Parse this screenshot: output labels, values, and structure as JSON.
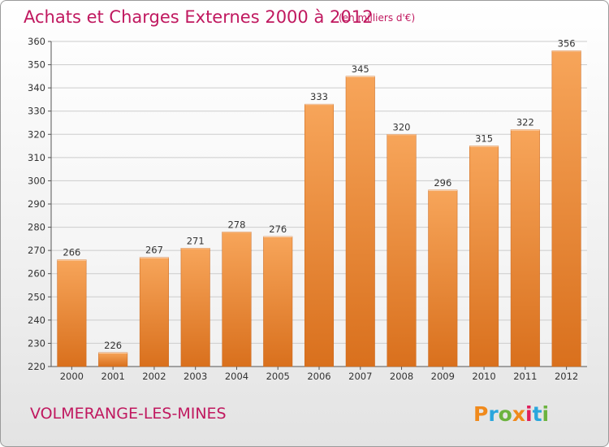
{
  "header": {
    "title": "Achats et Charges Externes 2000 à 2012",
    "unit": "(en milliers d'€)"
  },
  "footer": {
    "place": "VOLMERANGE-LES-MINES",
    "logo_text": "Proxiti",
    "logo_colors": [
      "#f08a1c",
      "#2aa6dd",
      "#6cb33f",
      "#f08a1c",
      "#e01e5a",
      "#2aa6dd",
      "#6cb33f"
    ]
  },
  "colors": {
    "bar_top": "#f7a55a",
    "bar_bottom": "#d9701d",
    "grid": "#cccccc",
    "title": "#c0185f"
  },
  "chart_data": {
    "type": "bar",
    "title": "Achats et Charges Externes 2000 à 2012",
    "subtitle": "(en milliers d'€)",
    "xlabel": "",
    "ylabel": "",
    "categories": [
      "2000",
      "2001",
      "2002",
      "2003",
      "2004",
      "2005",
      "2006",
      "2007",
      "2008",
      "2009",
      "2010",
      "2011",
      "2012"
    ],
    "values": [
      266,
      226,
      267,
      271,
      278,
      276,
      333,
      345,
      320,
      296,
      315,
      322,
      356
    ],
    "ylim": [
      220,
      360
    ],
    "yticks": [
      220,
      230,
      240,
      250,
      260,
      270,
      280,
      290,
      300,
      310,
      320,
      330,
      340,
      350,
      360
    ],
    "grid": true,
    "legend": "none"
  }
}
